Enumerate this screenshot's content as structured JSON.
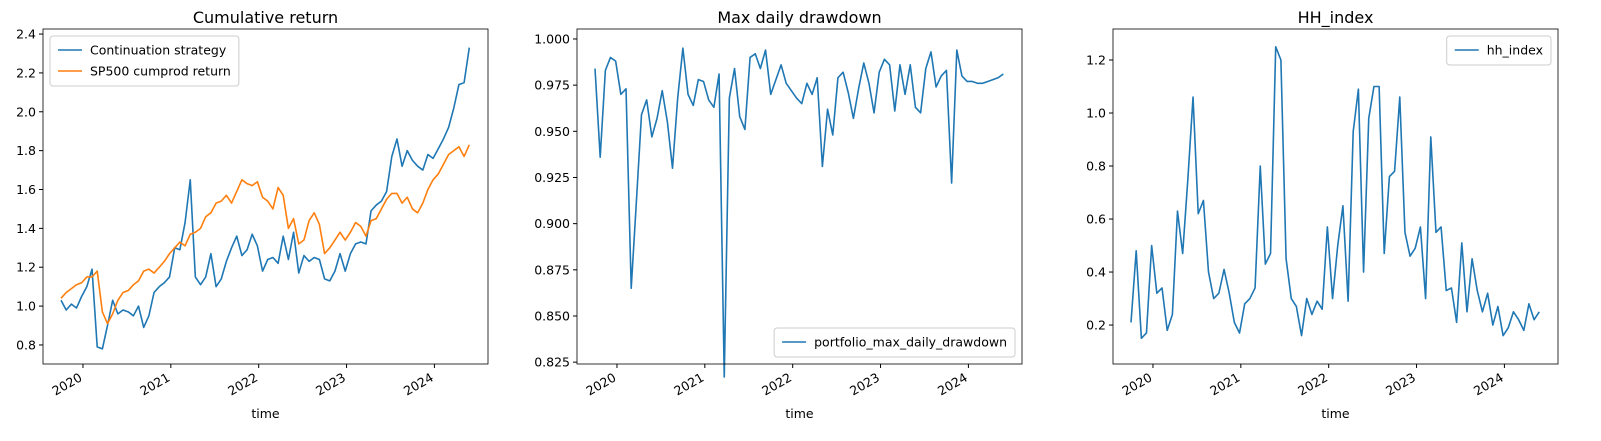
{
  "chart_data": [
    {
      "type": "line",
      "title": "Cumulative return",
      "x_label": "time",
      "legend": "upper left",
      "xlim": [
        2019.545,
        2024.61
      ],
      "xticks": [
        2020,
        2021,
        2022,
        2023,
        2024
      ],
      "ylim": [
        0.702,
        2.426
      ],
      "yticks": [
        0.8,
        {
          "value": 1.0,
          "label": "1.0"
        },
        1.2,
        1.4,
        1.6,
        1.8,
        {
          "value": 2.0,
          "label": "2.0"
        },
        2.2,
        2.4
      ],
      "x": [
        2019.75,
        2019.809,
        2019.868,
        2019.926,
        2019.985,
        2020.044,
        2020.103,
        2020.162,
        2020.221,
        2020.279,
        2020.338,
        2020.397,
        2020.456,
        2020.515,
        2020.574,
        2020.632,
        2020.691,
        2020.75,
        2020.809,
        2020.868,
        2020.926,
        2020.985,
        2021.044,
        2021.103,
        2021.162,
        2021.221,
        2021.279,
        2021.338,
        2021.397,
        2021.456,
        2021.515,
        2021.574,
        2021.632,
        2021.691,
        2021.75,
        2021.809,
        2021.868,
        2021.926,
        2021.985,
        2022.044,
        2022.103,
        2022.162,
        2022.221,
        2022.279,
        2022.338,
        2022.397,
        2022.456,
        2022.515,
        2022.574,
        2022.632,
        2022.691,
        2022.75,
        2022.809,
        2022.868,
        2022.926,
        2022.985,
        2023.044,
        2023.103,
        2023.162,
        2023.221,
        2023.279,
        2023.338,
        2023.397,
        2023.456,
        2023.515,
        2023.574,
        2023.632,
        2023.691,
        2023.75,
        2023.809,
        2023.868,
        2023.926,
        2023.985,
        2024.044,
        2024.103,
        2024.162,
        2024.221,
        2024.279,
        2024.338,
        2024.397
      ],
      "series": [
        {
          "name": "Continuation strategy",
          "color": "#1f77b4",
          "values": [
            1.03,
            0.98,
            1.01,
            0.99,
            1.05,
            1.1,
            1.19,
            0.79,
            0.78,
            0.9,
            1.03,
            0.96,
            0.98,
            0.97,
            0.95,
            1.0,
            0.89,
            0.95,
            1.07,
            1.1,
            1.12,
            1.15,
            1.3,
            1.29,
            1.43,
            1.65,
            1.15,
            1.11,
            1.15,
            1.27,
            1.1,
            1.14,
            1.23,
            1.3,
            1.36,
            1.26,
            1.29,
            1.37,
            1.31,
            1.18,
            1.24,
            1.25,
            1.22,
            1.36,
            1.24,
            1.38,
            1.17,
            1.26,
            1.23,
            1.25,
            1.24,
            1.14,
            1.13,
            1.18,
            1.27,
            1.18,
            1.27,
            1.32,
            1.33,
            1.32,
            1.49,
            1.52,
            1.54,
            1.59,
            1.77,
            1.86,
            1.72,
            1.8,
            1.75,
            1.72,
            1.7,
            1.78,
            1.76,
            1.81,
            1.86,
            1.92,
            2.02,
            2.14,
            2.15,
            2.33
          ]
        },
        {
          "name": "SP500 cumprod return",
          "color": "#ff7f0e",
          "values": [
            1.04,
            1.07,
            1.09,
            1.11,
            1.12,
            1.15,
            1.15,
            1.18,
            0.97,
            0.91,
            0.96,
            1.03,
            1.07,
            1.08,
            1.11,
            1.13,
            1.18,
            1.19,
            1.17,
            1.2,
            1.23,
            1.27,
            1.3,
            1.33,
            1.31,
            1.37,
            1.38,
            1.4,
            1.46,
            1.48,
            1.53,
            1.54,
            1.57,
            1.53,
            1.59,
            1.65,
            1.63,
            1.62,
            1.64,
            1.56,
            1.54,
            1.5,
            1.61,
            1.57,
            1.4,
            1.45,
            1.32,
            1.34,
            1.44,
            1.48,
            1.42,
            1.27,
            1.3,
            1.34,
            1.38,
            1.34,
            1.38,
            1.43,
            1.41,
            1.36,
            1.44,
            1.45,
            1.5,
            1.55,
            1.58,
            1.58,
            1.53,
            1.56,
            1.5,
            1.48,
            1.53,
            1.6,
            1.65,
            1.68,
            1.73,
            1.78,
            1.8,
            1.82,
            1.77,
            1.83
          ]
        }
      ]
    },
    {
      "type": "line",
      "title": "Max daily drawdown",
      "x_label": "time",
      "legend": "lower right",
      "xlim": [
        2019.545,
        2024.61
      ],
      "xticks": [
        2020,
        2021,
        2022,
        2023,
        2024
      ],
      "ylim": [
        0.824,
        1.0054
      ],
      "yticks": [
        0.825,
        {
          "value": 0.85,
          "label": "0.850"
        },
        0.875,
        {
          "value": 0.9,
          "label": "0.900"
        },
        0.925,
        {
          "value": 0.95,
          "label": "0.950"
        },
        0.975,
        {
          "value": 1.0,
          "label": "1.000"
        }
      ],
      "x": [
        2019.75,
        2019.809,
        2019.868,
        2019.926,
        2019.985,
        2020.044,
        2020.103,
        2020.162,
        2020.221,
        2020.279,
        2020.338,
        2020.397,
        2020.456,
        2020.515,
        2020.574,
        2020.632,
        2020.691,
        2020.75,
        2020.809,
        2020.868,
        2020.926,
        2020.985,
        2021.044,
        2021.103,
        2021.162,
        2021.221,
        2021.279,
        2021.338,
        2021.397,
        2021.456,
        2021.515,
        2021.574,
        2021.632,
        2021.691,
        2021.75,
        2021.809,
        2021.868,
        2021.926,
        2021.985,
        2022.044,
        2022.103,
        2022.162,
        2022.221,
        2022.279,
        2022.338,
        2022.397,
        2022.456,
        2022.515,
        2022.574,
        2022.632,
        2022.691,
        2022.75,
        2022.809,
        2022.868,
        2022.926,
        2022.985,
        2023.044,
        2023.103,
        2023.162,
        2023.221,
        2023.279,
        2023.338,
        2023.397,
        2023.456,
        2023.515,
        2023.574,
        2023.632,
        2023.691,
        2023.75,
        2023.809,
        2023.868,
        2023.926,
        2023.985,
        2024.044,
        2024.103,
        2024.162,
        2024.221,
        2024.279,
        2024.338,
        2024.397
      ],
      "series": [
        {
          "name": "portfolio_max_daily_drawdown",
          "color": "#1f77b4",
          "values": [
            0.984,
            0.936,
            0.983,
            0.99,
            0.988,
            0.97,
            0.973,
            0.865,
            0.912,
            0.959,
            0.967,
            0.947,
            0.957,
            0.972,
            0.955,
            0.93,
            0.968,
            0.995,
            0.97,
            0.964,
            0.978,
            0.977,
            0.967,
            0.963,
            0.981,
            0.817,
            0.968,
            0.984,
            0.958,
            0.951,
            0.99,
            0.992,
            0.984,
            0.994,
            0.97,
            0.978,
            0.986,
            0.976,
            0.972,
            0.968,
            0.965,
            0.976,
            0.97,
            0.979,
            0.931,
            0.962,
            0.948,
            0.979,
            0.982,
            0.971,
            0.957,
            0.973,
            0.987,
            0.976,
            0.96,
            0.982,
            0.989,
            0.986,
            0.961,
            0.986,
            0.97,
            0.986,
            0.963,
            0.96,
            0.984,
            0.993,
            0.974,
            0.98,
            0.983,
            0.922,
            0.994,
            0.98,
            0.977,
            0.977,
            0.976,
            0.976,
            0.977,
            0.978,
            0.979,
            0.981
          ]
        }
      ]
    },
    {
      "type": "line",
      "title": "HH_index",
      "x_label": "time",
      "legend": "upper right",
      "xlim": [
        2019.545,
        2024.61
      ],
      "xticks": [
        2020,
        2021,
        2022,
        2023,
        2024
      ],
      "ylim": [
        0.053,
        1.317
      ],
      "yticks": [
        0.2,
        0.4,
        0.6,
        0.8,
        {
          "value": 1.0,
          "label": "1.0"
        },
        1.2
      ],
      "x": [
        2019.75,
        2019.809,
        2019.868,
        2019.926,
        2019.985,
        2020.044,
        2020.103,
        2020.162,
        2020.221,
        2020.279,
        2020.338,
        2020.397,
        2020.456,
        2020.515,
        2020.574,
        2020.632,
        2020.691,
        2020.75,
        2020.809,
        2020.868,
        2020.926,
        2020.985,
        2021.044,
        2021.103,
        2021.162,
        2021.221,
        2021.279,
        2021.338,
        2021.397,
        2021.456,
        2021.515,
        2021.574,
        2021.632,
        2021.691,
        2021.75,
        2021.809,
        2021.868,
        2021.926,
        2021.985,
        2022.044,
        2022.103,
        2022.162,
        2022.221,
        2022.279,
        2022.338,
        2022.397,
        2022.456,
        2022.515,
        2022.574,
        2022.632,
        2022.691,
        2022.75,
        2022.809,
        2022.868,
        2022.926,
        2022.985,
        2023.044,
        2023.103,
        2023.162,
        2023.221,
        2023.279,
        2023.338,
        2023.397,
        2023.456,
        2023.515,
        2023.574,
        2023.632,
        2023.691,
        2023.75,
        2023.809,
        2023.868,
        2023.926,
        2023.985,
        2024.044,
        2024.103,
        2024.162,
        2024.221,
        2024.279,
        2024.338,
        2024.397
      ],
      "series": [
        {
          "name": "hh_index",
          "color": "#1f77b4",
          "values": [
            0.21,
            0.48,
            0.15,
            0.17,
            0.5,
            0.32,
            0.34,
            0.18,
            0.24,
            0.63,
            0.47,
            0.75,
            1.06,
            0.62,
            0.67,
            0.4,
            0.3,
            0.32,
            0.41,
            0.32,
            0.21,
            0.17,
            0.28,
            0.3,
            0.34,
            0.8,
            0.43,
            0.47,
            1.25,
            1.2,
            0.45,
            0.3,
            0.27,
            0.16,
            0.3,
            0.24,
            0.29,
            0.26,
            0.57,
            0.3,
            0.5,
            0.65,
            0.29,
            0.93,
            1.09,
            0.4,
            0.98,
            1.1,
            1.1,
            0.47,
            0.76,
            0.78,
            1.06,
            0.55,
            0.46,
            0.49,
            0.57,
            0.3,
            0.91,
            0.55,
            0.57,
            0.33,
            0.34,
            0.21,
            0.51,
            0.25,
            0.45,
            0.33,
            0.25,
            0.32,
            0.2,
            0.27,
            0.16,
            0.19,
            0.25,
            0.22,
            0.18,
            0.28,
            0.22,
            0.25
          ]
        }
      ]
    }
  ]
}
